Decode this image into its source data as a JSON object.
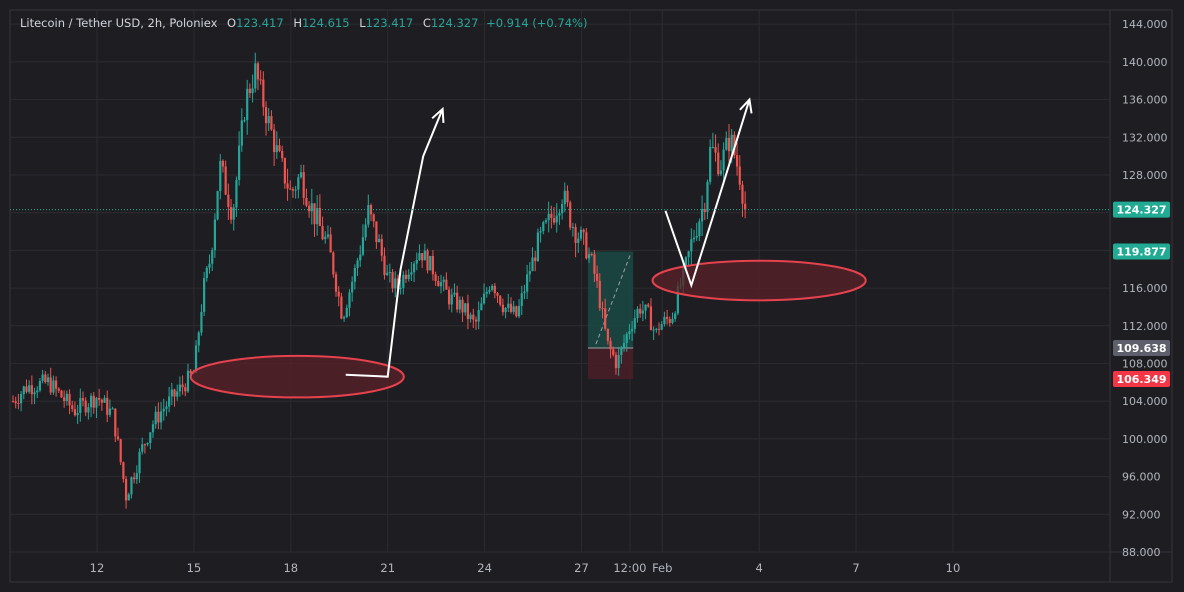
{
  "header": {
    "symbol": "Litecoin / Tether USD, 2h, Poloniex",
    "open_label": "O",
    "open": "123.417",
    "high_label": "H",
    "high": "124.615",
    "low_label": "L",
    "low": "123.417",
    "close_label": "C",
    "close": "124.327",
    "change": "+0.914 (+0.74%)"
  },
  "colors": {
    "background": "#1e1e22",
    "grid": "#2b2b31",
    "up": "#26a69a",
    "down": "#ef5350",
    "last_price": "#22ab94",
    "stop": "#f23645",
    "entry": "#5d606b",
    "target_zone": "#1a4a44",
    "stop_zone": "#4a1f27",
    "ellipse_stroke": "#e5424e",
    "ellipse_fill": "#5a2228",
    "arrow": "#ffffff"
  },
  "chart_data": {
    "type": "candlestick",
    "title": "Litecoin / Tether USD, 2h, Poloniex",
    "y_ticks": [
      "88.000",
      "92.000",
      "96.000",
      "100.000",
      "104.000",
      "108.000",
      "112.000",
      "116.000",
      "120.000",
      "124.000",
      "128.000",
      "132.000",
      "136.000",
      "140.000",
      "144.000"
    ],
    "ylim": [
      88,
      145.5
    ],
    "x_ticks": [
      "12",
      "15",
      "18",
      "21",
      "24",
      "27",
      "12:00",
      "Feb",
      "4",
      "7",
      "10"
    ],
    "x_tick_day_index": [
      0,
      3,
      6,
      9,
      12,
      15,
      16.5,
      17.5,
      20.5,
      23.5,
      26.5
    ],
    "price_path_day_index": [
      -2.6,
      -2.2,
      -1.5,
      -0.7,
      0,
      0.5,
      0.9,
      1.2,
      1.4,
      1.7,
      2.0,
      2.5,
      3.0,
      3.3,
      3.5,
      3.8,
      4.2,
      4.6,
      4.9,
      5.2,
      5.6,
      6.0,
      6.3,
      6.7,
      7.2,
      7.6,
      8.0,
      8.4,
      8.7,
      9.0,
      9.3,
      9.6,
      10.0,
      10.4,
      10.9,
      11.3,
      11.7,
      12.2,
      12.6,
      13.0,
      13.4,
      13.7,
      14.0,
      14.4,
      14.7,
      15.0,
      15.3,
      15.5,
      15.8,
      16.1,
      16.5,
      16.8,
      17.1,
      17.3,
      17.4,
      17.8,
      18.2,
      18.5,
      18.8,
      19.0,
      19.3,
      19.6,
      19.9,
      20.1
    ],
    "price_path": [
      104,
      105.5,
      106,
      103,
      104.5,
      102.5,
      94,
      97,
      99,
      101.5,
      103,
      105,
      107,
      116,
      119,
      129,
      124,
      136,
      139,
      135,
      130,
      126,
      128,
      124,
      120,
      113,
      118,
      124,
      121,
      117,
      116,
      118,
      120,
      118,
      115,
      114,
      112,
      117,
      114,
      113,
      118,
      121,
      123,
      126,
      123,
      121,
      119,
      116,
      110,
      108,
      112,
      114,
      113,
      111,
      112,
      113,
      118,
      122,
      125,
      131,
      129,
      132,
      128,
      124
    ],
    "last_price": 124.327,
    "price_badges": [
      {
        "label": "124.327",
        "value": 124.327,
        "role": "last"
      },
      {
        "label": "119.877",
        "value": 119.877,
        "role": "target"
      },
      {
        "label": "109.638",
        "value": 109.638,
        "role": "entry"
      },
      {
        "label": "106.349",
        "value": 106.349,
        "role": "stop"
      }
    ],
    "long_position": {
      "entry": 109.638,
      "target": 119.877,
      "stop": 106.349,
      "start_day": 15.2,
      "end_day": 16.6
    },
    "zones": [
      {
        "center_day": 6.2,
        "center_price": 106.6,
        "half_width_days": 3.3,
        "half_height": 2.2
      },
      {
        "center_day": 20.5,
        "center_price": 116.8,
        "half_width_days": 3.3,
        "half_height": 2.1
      }
    ],
    "arrows": [
      [
        [
          7.7,
          106.8
        ],
        [
          9.0,
          106.6
        ],
        [
          9.4,
          118.0
        ],
        [
          10.1,
          130.0
        ],
        [
          10.7,
          135.0
        ]
      ],
      [
        [
          17.6,
          124.2
        ],
        [
          18.4,
          116.3
        ],
        [
          19.2,
          125.0
        ],
        [
          20.2,
          136.0
        ]
      ]
    ]
  }
}
